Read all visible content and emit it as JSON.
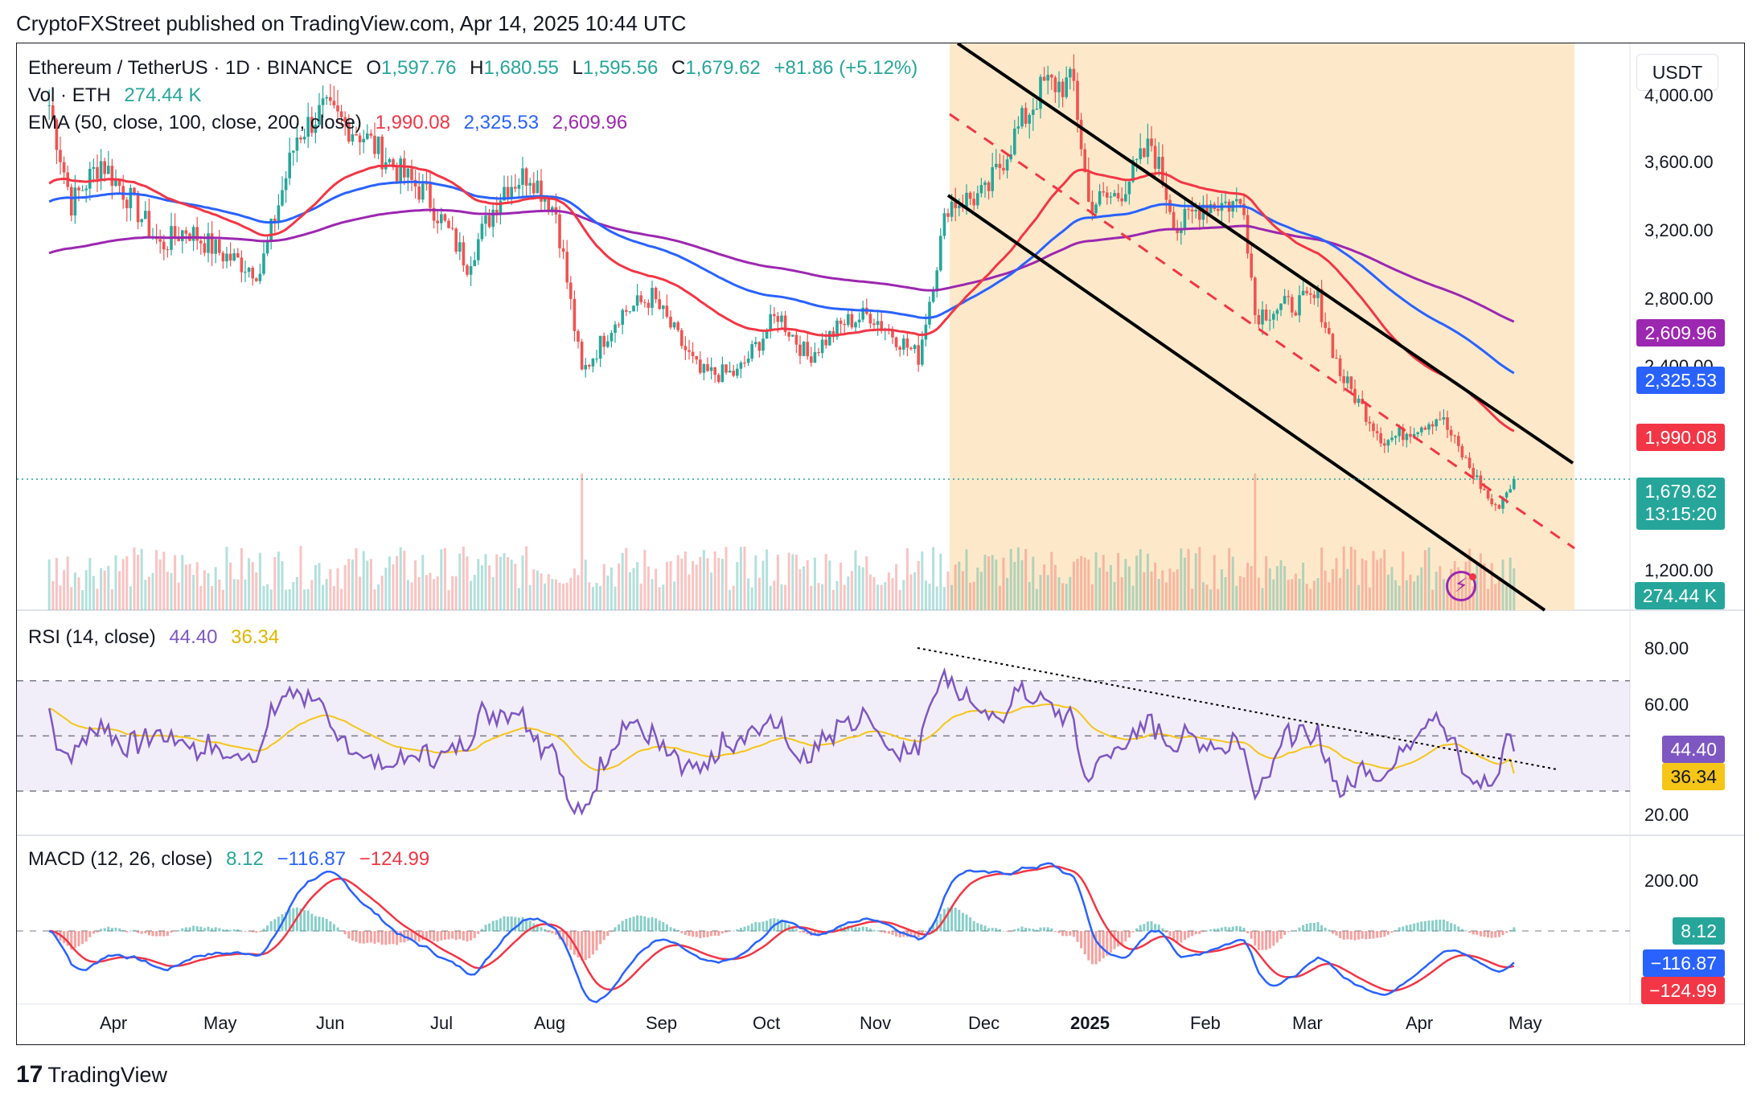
{
  "header": {
    "text": "CryptoFXStreet published on TradingView.com, Apr 14, 2025 10:44 UTC"
  },
  "footer": {
    "brand": "TradingView",
    "logo": "tradingview-logo"
  },
  "currency_button": "USDT",
  "legend": {
    "symbol": "Ethereum / TetherUS · 1D · BINANCE",
    "o_label": "O",
    "o": "1,597.76",
    "h_label": "H",
    "h": "1,680.55",
    "l_label": "L",
    "l": "1,595.56",
    "c_label": "C",
    "c": "1,679.62",
    "change": "+81.86 (+5.12%)",
    "vol_label": "Vol · ETH",
    "vol": "274.44 K",
    "ema_label": "EMA (50, close, 100, close, 200, close)",
    "ema50": "1,990.08",
    "ema100": "2,325.53",
    "ema200": "2,609.96",
    "rsi_label": "RSI (14, close)",
    "rsi": "44.40",
    "rsi_ma": "36.34",
    "macd_label": "MACD (12, 26, close)",
    "macd_hist": "8.12",
    "macd": "−116.87",
    "macd_signal": "−124.99"
  },
  "price_axis": [
    "4,000.00",
    "3,600.00",
    "3,200.00",
    "2,800.00",
    "2,400.00",
    "1,200.00"
  ],
  "rsi_axis": [
    "80.00",
    "60.00",
    "20.00"
  ],
  "macd_axis": [
    "200.00"
  ],
  "time_axis": [
    "Apr",
    "May",
    "Jun",
    "Jul",
    "Aug",
    "Sep",
    "Oct",
    "Nov",
    "Dec",
    "2025",
    "Feb",
    "Mar",
    "Apr",
    "May"
  ],
  "price_labels": {
    "ema200": "2,609.96",
    "ema100": "2,325.53",
    "ema50": "1,990.08",
    "close": "1,679.62",
    "countdown": "13:15:20",
    "volume": "274.44 K"
  },
  "rsi_labels": {
    "rsi": "44.40",
    "ma": "36.34"
  },
  "macd_labels": {
    "hist": "8.12",
    "macd": "−116.87",
    "signal": "−124.99"
  },
  "colors": {
    "up": "#26a69a",
    "down": "#ef5350",
    "ema50": "#f23645",
    "ema100": "#2962ff",
    "ema200": "#9c27b0",
    "rsi": "#7e57c2",
    "rsi_ma": "#f5c518",
    "channel": "#fde7c4"
  },
  "chart_data": {
    "type": "candlestick",
    "symbol": "ETH/USDT",
    "timeframe": "1D",
    "y_range": [
      1050,
      4150
    ],
    "close_path": [
      [
        "2024-03-14",
        3880
      ],
      [
        "2024-03-20",
        3300
      ],
      [
        "2024-03-28",
        3550
      ],
      [
        "2024-04-05",
        3320
      ],
      [
        "2024-04-13",
        3050
      ],
      [
        "2024-04-20",
        3150
      ],
      [
        "2024-04-30",
        3000
      ],
      [
        "2024-05-10",
        2900
      ],
      [
        "2024-05-20",
        3700
      ],
      [
        "2024-05-27",
        3850
      ],
      [
        "2024-06-07",
        3700
      ],
      [
        "2024-06-17",
        3480
      ],
      [
        "2024-06-24",
        3350
      ],
      [
        "2024-07-05",
        2950
      ],
      [
        "2024-07-15",
        3400
      ],
      [
        "2024-07-22",
        3480
      ],
      [
        "2024-07-29",
        3250
      ],
      [
        "2024-08-05",
        2300
      ],
      [
        "2024-08-15",
        2650
      ],
      [
        "2024-08-24",
        2750
      ],
      [
        "2024-09-06",
        2300
      ],
      [
        "2024-09-16",
        2300
      ],
      [
        "2024-09-27",
        2650
      ],
      [
        "2024-10-05",
        2400
      ],
      [
        "2024-10-15",
        2600
      ],
      [
        "2024-10-22",
        2650
      ],
      [
        "2024-11-04",
        2400
      ],
      [
        "2024-11-12",
        3300
      ],
      [
        "2024-11-22",
        3350
      ],
      [
        "2024-11-30",
        3700
      ],
      [
        "2024-12-08",
        4000
      ],
      [
        "2024-12-16",
        4000
      ],
      [
        "2024-12-20",
        3300
      ],
      [
        "2024-12-28",
        3350
      ],
      [
        "2025-01-06",
        3650
      ],
      [
        "2025-01-13",
        3150
      ],
      [
        "2025-01-20",
        3300
      ],
      [
        "2025-01-31",
        3300
      ],
      [
        "2025-02-03",
        2650
      ],
      [
        "2025-02-12",
        2700
      ],
      [
        "2025-02-20",
        2740
      ],
      [
        "2025-02-26",
        2300
      ],
      [
        "2025-03-10",
        1900
      ],
      [
        "2025-03-20",
        2000
      ],
      [
        "2025-03-25",
        2050
      ],
      [
        "2025-03-31",
        1820
      ],
      [
        "2025-04-09",
        1500
      ],
      [
        "2025-04-14",
        1679.62
      ]
    ],
    "ema50_last": 1990.08,
    "ema100_last": 2325.53,
    "ema200_last": 2609.96,
    "rsi": {
      "value": 44.4,
      "ma": 36.34,
      "upper": 70,
      "lower": 30,
      "axis": [
        20,
        80
      ]
    },
    "macd": {
      "hist": 8.12,
      "macd": -116.87,
      "signal": -124.99
    }
  }
}
